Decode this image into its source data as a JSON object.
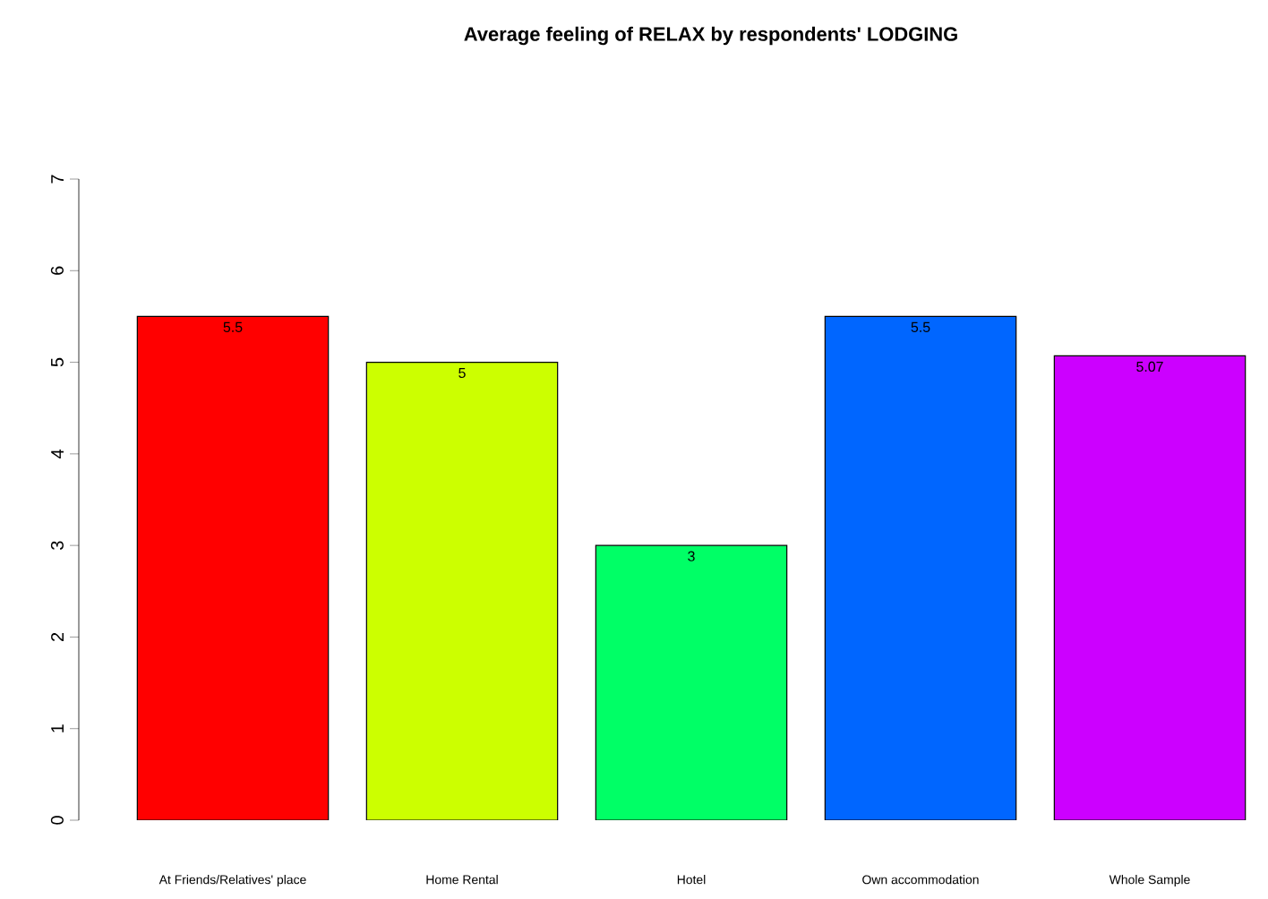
{
  "chart_data": {
    "type": "bar",
    "title": "Average  feeling of RELAX  by respondents' LODGING",
    "categories": [
      "At Friends/Relatives' place",
      "Home Rental",
      "Hotel",
      "Own accommodation",
      "Whole Sample"
    ],
    "values": [
      5.5,
      5,
      3,
      5.5,
      5.07
    ],
    "colors": [
      "#ff0000",
      "#ccff00",
      "#00ff66",
      "#0066ff",
      "#cc00ff"
    ],
    "ylim": [
      0,
      7
    ],
    "yticks": [
      0,
      1,
      2,
      3,
      4,
      5,
      6,
      7
    ],
    "data_labels": true
  }
}
